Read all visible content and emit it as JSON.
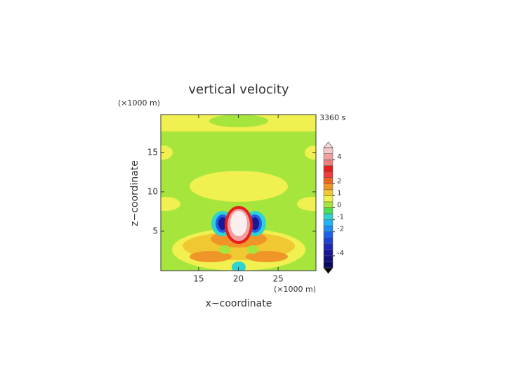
{
  "chart_data": {
    "type": "contour",
    "title": "vertical velocity",
    "xlabel": "x−coordinate",
    "ylabel": "z−coordinate",
    "x_unit": "(×1000 m)",
    "y_unit": "(×1000 m)",
    "time_label": "3360 s",
    "xlim": [
      10.25,
      29.75
    ],
    "ylim": [
      0,
      19.8
    ],
    "xticks": [
      15,
      20,
      25
    ],
    "yticks": [
      5,
      10,
      15
    ],
    "colorbar": {
      "levels": [
        -5,
        -4.5,
        -4,
        -3.5,
        -3,
        -2.5,
        -2,
        -1.5,
        -1,
        -0.5,
        0,
        0.5,
        1,
        1.5,
        2,
        2.5,
        3,
        3.5,
        4,
        4.5,
        5
      ],
      "colors": [
        "#0a0a60",
        "#10107a",
        "#181896",
        "#1e28b4",
        "#2040d0",
        "#2060e8",
        "#1e8cf0",
        "#20b4f0",
        "#30d2d2",
        "#50dc50",
        "#a6e63c",
        "#f0f050",
        "#f0c832",
        "#f09628",
        "#f06420",
        "#f03c3c",
        "#e61e1e",
        "#f08080",
        "#f0a0a0",
        "#f5c8c8"
      ],
      "under_color": "#000000",
      "over_color": "#f8d8d8",
      "ticks": [
        -4,
        -2,
        -1,
        0,
        1,
        2,
        4
      ]
    }
  }
}
